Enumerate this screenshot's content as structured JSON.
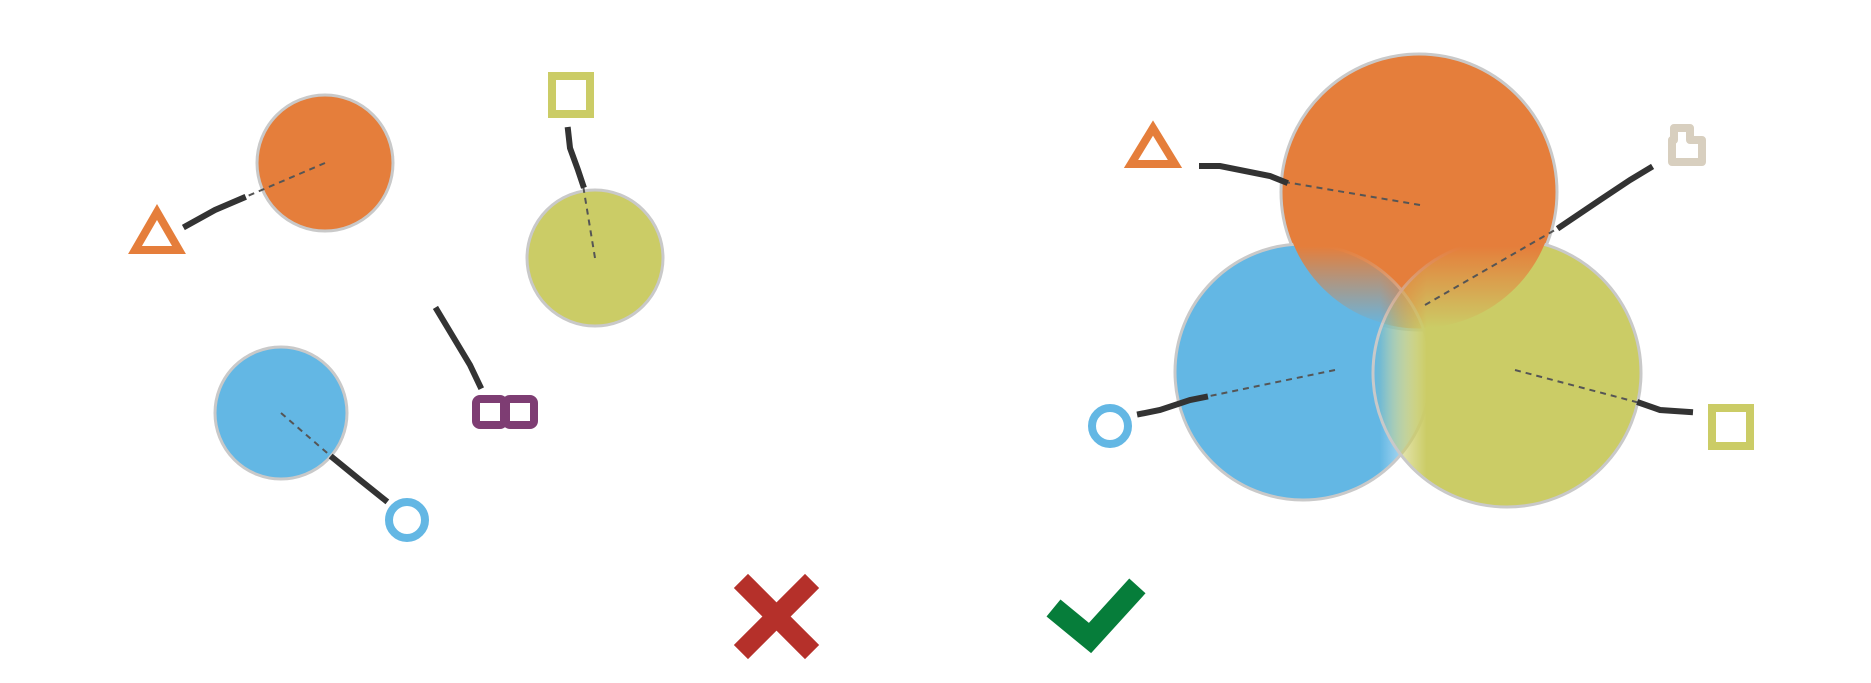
{
  "palette": {
    "orange": "#E57E3B",
    "yellow_green": "#CBCC66",
    "blue": "#63B7E4",
    "purple": "#7E3D73",
    "dark_line": "#333333",
    "cross_red": "#B5302A",
    "check_green": "#067D3A",
    "muted_house": "#D8CFBF"
  },
  "left_panel": {
    "status": "incorrect",
    "status_icon": "cross-icon",
    "circles": [
      {
        "color": "orange",
        "marker_icon": "triangle-icon"
      },
      {
        "color": "yellow_green",
        "marker_icon": "square-icon"
      },
      {
        "color": "blue",
        "marker_icon": "circle-icon"
      }
    ],
    "extra_marker_icon": "infinity-icon",
    "caption": ""
  },
  "right_panel": {
    "status": "correct",
    "status_icon": "checkmark-icon",
    "circles": [
      {
        "color": "orange",
        "marker_icon": "triangle-icon"
      },
      {
        "color": "blue",
        "marker_icon": "circle-icon"
      },
      {
        "color": "yellow_green",
        "marker_icon": "square-icon"
      }
    ],
    "center_marker_icon": "house-icon",
    "caption": ""
  }
}
